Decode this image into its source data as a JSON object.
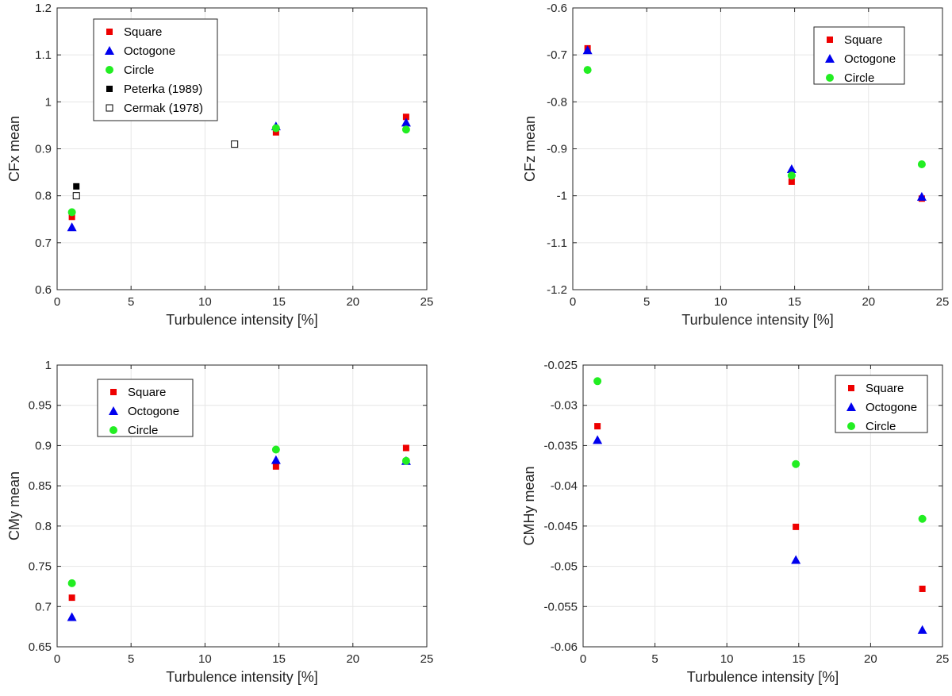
{
  "xlabel": "Turbulence intensity [%]",
  "colors": {
    "square": "#ee0000",
    "octogone": "#0000ee",
    "circle": "#22ee22",
    "peterka": "#000000",
    "cermak": "#ffffff"
  },
  "chart_data": [
    {
      "type": "scatter",
      "ylabel": "CFx mean",
      "xlim": [
        0,
        25
      ],
      "ylim": [
        0.6,
        1.2
      ],
      "xticks": [
        0,
        5,
        10,
        15,
        20,
        25
      ],
      "yticks": [
        0.6,
        0.7,
        0.8,
        0.9,
        1,
        1.1,
        1.2
      ],
      "ytick_labels": [
        "0.6",
        "0.7",
        "0.8",
        "0.9",
        "1",
        "1.1",
        "1.2"
      ],
      "legend_position": "top-left",
      "series": [
        {
          "name": "Square",
          "marker": "square",
          "x": [
            1.0,
            14.8,
            23.6
          ],
          "y": [
            0.755,
            0.935,
            0.968
          ]
        },
        {
          "name": "Octogone",
          "marker": "triangle",
          "x": [
            1.0,
            14.8,
            23.6
          ],
          "y": [
            0.733,
            0.948,
            0.956
          ]
        },
        {
          "name": "Circle",
          "marker": "circle",
          "x": [
            1.0,
            14.8,
            23.6
          ],
          "y": [
            0.765,
            0.944,
            0.941
          ]
        },
        {
          "name": "Peterka (1989)",
          "marker": "square-filled-black",
          "x": [
            1.3
          ],
          "y": [
            0.82
          ]
        },
        {
          "name": "Cermak (1978)",
          "marker": "square-open",
          "x": [
            1.3,
            12.0
          ],
          "y": [
            0.8,
            0.91
          ]
        }
      ]
    },
    {
      "type": "scatter",
      "ylabel": "CFz mean",
      "xlim": [
        0,
        25
      ],
      "ylim": [
        -1.2,
        -0.6
      ],
      "xticks": [
        0,
        5,
        10,
        15,
        20,
        25
      ],
      "yticks": [
        -1.2,
        -1.1,
        -1,
        -0.9,
        -0.8,
        -0.7,
        -0.6
      ],
      "ytick_labels": [
        "-1.2",
        "-1.1",
        "-1",
        "-0.9",
        "-0.8",
        "-0.7",
        "-0.6"
      ],
      "legend_position": "top-right",
      "series": [
        {
          "name": "Square",
          "marker": "square",
          "x": [
            1.0,
            14.8,
            23.6
          ],
          "y": [
            -0.686,
            -0.97,
            -1.006
          ]
        },
        {
          "name": "Octogone",
          "marker": "triangle",
          "x": [
            1.0,
            14.8,
            23.6
          ],
          "y": [
            -0.69,
            -0.943,
            -1.002
          ]
        },
        {
          "name": "Circle",
          "marker": "circle",
          "x": [
            1.0,
            14.8,
            23.6
          ],
          "y": [
            -0.732,
            -0.957,
            -0.933
          ]
        }
      ]
    },
    {
      "type": "scatter",
      "ylabel": "CMy mean",
      "xlim": [
        0,
        25
      ],
      "ylim": [
        0.65,
        1.0
      ],
      "xticks": [
        0,
        5,
        10,
        15,
        20,
        25
      ],
      "yticks": [
        0.65,
        0.7,
        0.75,
        0.8,
        0.85,
        0.9,
        0.95,
        1
      ],
      "ytick_labels": [
        "0.65",
        "0.7",
        "0.75",
        "0.8",
        "0.85",
        "0.9",
        "0.95",
        "1"
      ],
      "legend_position": "top-left",
      "series": [
        {
          "name": "Square",
          "marker": "square",
          "x": [
            1.0,
            14.8,
            23.6
          ],
          "y": [
            0.711,
            0.874,
            0.897
          ]
        },
        {
          "name": "Octogone",
          "marker": "triangle",
          "x": [
            1.0,
            14.8,
            23.6
          ],
          "y": [
            0.687,
            0.882,
            0.881
          ]
        },
        {
          "name": "Circle",
          "marker": "circle",
          "x": [
            1.0,
            14.8,
            23.6
          ],
          "y": [
            0.729,
            0.895,
            0.881
          ]
        }
      ]
    },
    {
      "type": "scatter",
      "ylabel": "CMHy mean",
      "xlim": [
        0,
        25
      ],
      "ylim": [
        -0.06,
        -0.025
      ],
      "xticks": [
        0,
        5,
        10,
        15,
        20,
        25
      ],
      "yticks": [
        -0.06,
        -0.055,
        -0.05,
        -0.045,
        -0.04,
        -0.035,
        -0.03,
        -0.025
      ],
      "ytick_labels": [
        "-0.06",
        "-0.055",
        "-0.05",
        "-0.045",
        "-0.04",
        "-0.035",
        "-0.03",
        "-0.025"
      ],
      "legend_position": "top-right",
      "series": [
        {
          "name": "Square",
          "marker": "square",
          "x": [
            1.0,
            14.8,
            23.6
          ],
          "y": [
            -0.0326,
            -0.0451,
            -0.0528
          ]
        },
        {
          "name": "Octogone",
          "marker": "triangle",
          "x": [
            1.0,
            14.8,
            23.6
          ],
          "y": [
            -0.0343,
            -0.0492,
            -0.0579
          ]
        },
        {
          "name": "Circle",
          "marker": "circle",
          "x": [
            1.0,
            14.8,
            23.6
          ],
          "y": [
            -0.027,
            -0.0373,
            -0.0441
          ]
        }
      ]
    }
  ]
}
